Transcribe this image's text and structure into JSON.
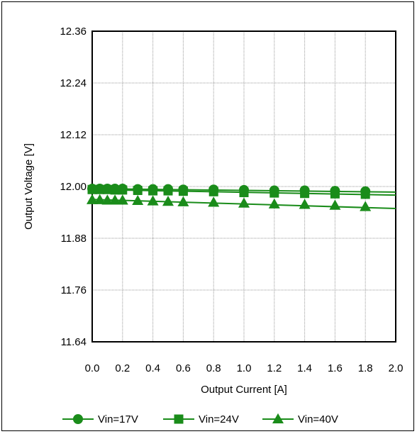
{
  "chart_data": {
    "type": "line",
    "xlabel": "Output Current [A]",
    "ylabel": "Output Voltage [V]",
    "xlim": [
      0.0,
      2.0
    ],
    "ylim": [
      11.64,
      12.36
    ],
    "x_ticks": [
      "0.0",
      "0.2",
      "0.4",
      "0.6",
      "0.8",
      "1.0",
      "1.2",
      "1.4",
      "1.6",
      "1.8",
      "2.0"
    ],
    "y_ticks": [
      "11.64",
      "11.76",
      "11.88",
      "12.00",
      "12.12",
      "12.24",
      "12.36"
    ],
    "grid": true,
    "legend_position": "bottom",
    "color": "#1a8c1a",
    "series": [
      {
        "name": "Vin=17V",
        "marker": "circle",
        "x": [
          0.0,
          0.05,
          0.1,
          0.15,
          0.2,
          0.3,
          0.4,
          0.5,
          0.6,
          0.8,
          1.0,
          1.2,
          1.4,
          1.6,
          1.8
        ],
        "y": [
          11.995,
          11.995,
          11.995,
          11.995,
          11.995,
          11.994,
          11.994,
          11.994,
          11.993,
          11.993,
          11.992,
          11.991,
          11.991,
          11.99,
          11.989
        ],
        "trend": {
          "x": [
            0.0,
            2.0
          ],
          "y": [
            11.995,
            11.987
          ]
        }
      },
      {
        "name": "Vin=24V",
        "marker": "square",
        "x": [
          0.0,
          0.05,
          0.1,
          0.15,
          0.2,
          0.3,
          0.4,
          0.5,
          0.6,
          0.8,
          1.0,
          1.2,
          1.4,
          1.6,
          1.8
        ],
        "y": [
          11.993,
          11.993,
          11.993,
          11.992,
          11.992,
          11.991,
          11.99,
          11.99,
          11.989,
          11.988,
          11.986,
          11.985,
          11.984,
          11.983,
          11.982
        ],
        "trend": {
          "x": [
            0.0,
            2.0
          ],
          "y": [
            11.993,
            11.98
          ]
        }
      },
      {
        "name": "Vin=40V",
        "marker": "triangle",
        "x": [
          0.0,
          0.05,
          0.1,
          0.15,
          0.2,
          0.3,
          0.4,
          0.5,
          0.6,
          0.8,
          1.0,
          1.2,
          1.4,
          1.6,
          1.8
        ],
        "y": [
          11.969,
          11.969,
          11.968,
          11.968,
          11.968,
          11.967,
          11.966,
          11.965,
          11.964,
          11.963,
          11.961,
          11.959,
          11.958,
          11.956,
          11.953
        ],
        "trend": {
          "x": [
            0.0,
            2.0
          ],
          "y": [
            11.97,
            11.949
          ]
        }
      }
    ]
  }
}
